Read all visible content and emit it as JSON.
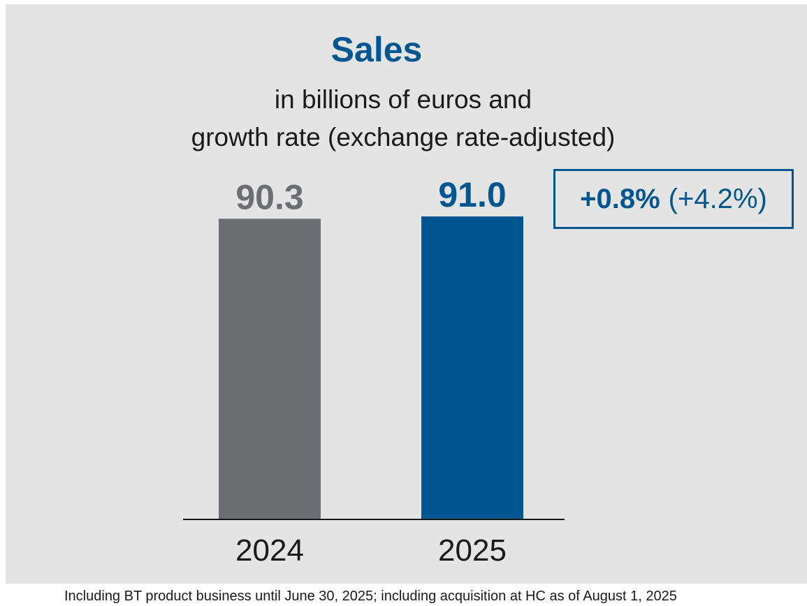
{
  "chart_data": {
    "type": "bar",
    "title": "Sales",
    "subtitle_lines": [
      "in billions of euros and",
      "growth rate (exchange rate-adjusted)"
    ],
    "categories": [
      "2024",
      "2025"
    ],
    "values": [
      90.3,
      91.0
    ],
    "data_labels": [
      "90.3",
      "91.0"
    ],
    "ylim": [
      0,
      91.0
    ],
    "grid": false,
    "xlabel": "",
    "ylabel": "",
    "annotation": {
      "growth": "+0.8%",
      "growth_adjusted": "(+4.2%)"
    }
  },
  "colors": {
    "bar_2024": "#6d6e72",
    "bar_2025": "#005691",
    "label_2024": "#6d6e72",
    "label_2025": "#005691",
    "title": "#005691",
    "panel_background": "#e4e4e4"
  },
  "footnote": "Including BT product business until June 30, 2025; including acquisition at HC as of August 1, 2025"
}
